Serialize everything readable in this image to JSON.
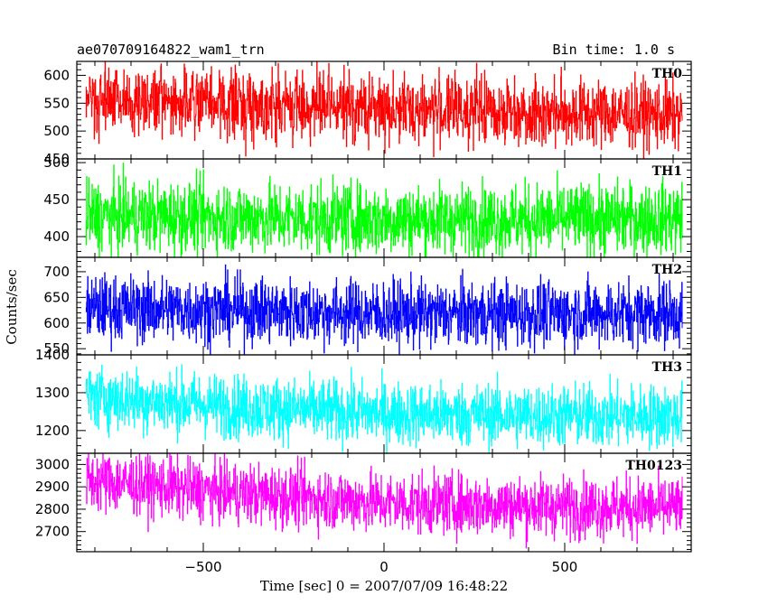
{
  "chart_data": {
    "type": "line",
    "title": "ae070709164822_wam1_trn",
    "bin_time_label": "Bin time: 1.0 s",
    "xlabel": "Time [sec] 0 = 2007/07/09 16:48:22",
    "ylabel": "Counts/sec",
    "xlim": [
      -850,
      850
    ],
    "x_data_range": [
      -825,
      825
    ],
    "x_ticks": [
      -500,
      0,
      500
    ],
    "x_tick_labels": [
      "−500",
      "0",
      "500"
    ],
    "panels": [
      {
        "name": "TH0",
        "color": "#ff0000",
        "ylim": [
          450,
          625
        ],
        "y_ticks": [
          450,
          500,
          550,
          600
        ],
        "y_tick_labels": [
          "450",
          "500",
          "550",
          "600"
        ],
        "trend": [
          [
            -825,
            555
          ],
          [
            -400,
            548
          ],
          [
            0,
            540
          ],
          [
            400,
            535
          ],
          [
            825,
            528
          ]
        ],
        "amplitude": 38
      },
      {
        "name": "TH1",
        "color": "#00ff00",
        "ylim": [
          372,
          505
        ],
        "y_ticks": [
          400,
          450,
          500
        ],
        "y_tick_labels": [
          "400",
          "450",
          "500"
        ],
        "trend": [
          [
            -825,
            428
          ],
          [
            -400,
            426
          ],
          [
            0,
            423
          ],
          [
            400,
            423
          ],
          [
            825,
            425
          ]
        ],
        "amplitude": 30
      },
      {
        "name": "TH2",
        "color": "#0000ff",
        "ylim": [
          538,
          728
        ],
        "y_ticks": [
          550,
          600,
          650,
          700
        ],
        "y_tick_labels": [
          "550",
          "600",
          "650",
          "700"
        ],
        "trend": [
          [
            -825,
            630
          ],
          [
            -400,
            625
          ],
          [
            0,
            618
          ],
          [
            400,
            618
          ],
          [
            825,
            620
          ]
        ],
        "amplitude": 40
      },
      {
        "name": "TH3",
        "color": "#00ffff",
        "ylim": [
          1140,
          1400
        ],
        "y_ticks": [
          1200,
          1300,
          1400
        ],
        "y_tick_labels": [
          "1200",
          "1300",
          "1400"
        ],
        "trend": [
          [
            -825,
            1290
          ],
          [
            -400,
            1262
          ],
          [
            0,
            1245
          ],
          [
            400,
            1240
          ],
          [
            825,
            1238
          ]
        ],
        "amplitude": 52
      },
      {
        "name": "TH0123",
        "color": "#ff00ff",
        "ylim": [
          2610,
          3050
        ],
        "y_ticks": [
          2700,
          2800,
          2900,
          3000
        ],
        "y_tick_labels": [
          "2700",
          "2800",
          "2900",
          "3000"
        ],
        "trend": [
          [
            -825,
            2930
          ],
          [
            -400,
            2870
          ],
          [
            0,
            2830
          ],
          [
            400,
            2815
          ],
          [
            825,
            2805
          ]
        ],
        "amplitude": 85
      }
    ],
    "grid": false,
    "legend": "none"
  }
}
